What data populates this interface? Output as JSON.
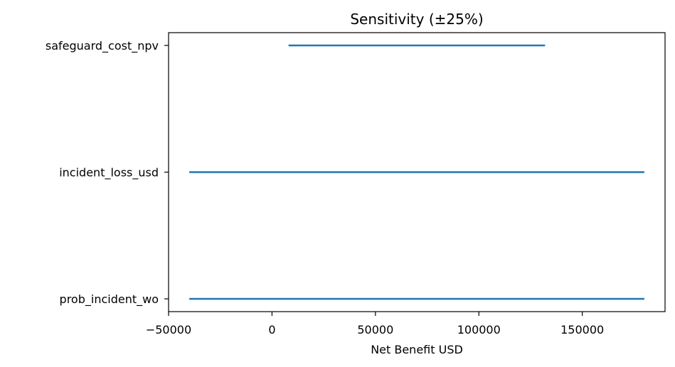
{
  "chart_data": {
    "type": "range-bar",
    "title": "Sensitivity (±25%)",
    "xlabel": "Net Benefit USD",
    "ylabel": "",
    "xlim": [
      -50000,
      190000
    ],
    "xticks": [
      -50000,
      0,
      50000,
      100000,
      150000
    ],
    "xtick_labels": [
      "−50000",
      "0",
      "50000",
      "100000",
      "150000"
    ],
    "categories": [
      "safeguard_cost_npv",
      "incident_loss_usd",
      "prob_incident_wo"
    ],
    "series": [
      {
        "color": "#1f77b4",
        "ranges": [
          {
            "category": "safeguard_cost_npv",
            "low": 8000,
            "high": 132000
          },
          {
            "category": "incident_loss_usd",
            "low": -40000,
            "high": 180000
          },
          {
            "category": "prob_incident_wo",
            "low": -40000,
            "high": 180000
          }
        ]
      }
    ],
    "grid": false,
    "legend": "none"
  }
}
